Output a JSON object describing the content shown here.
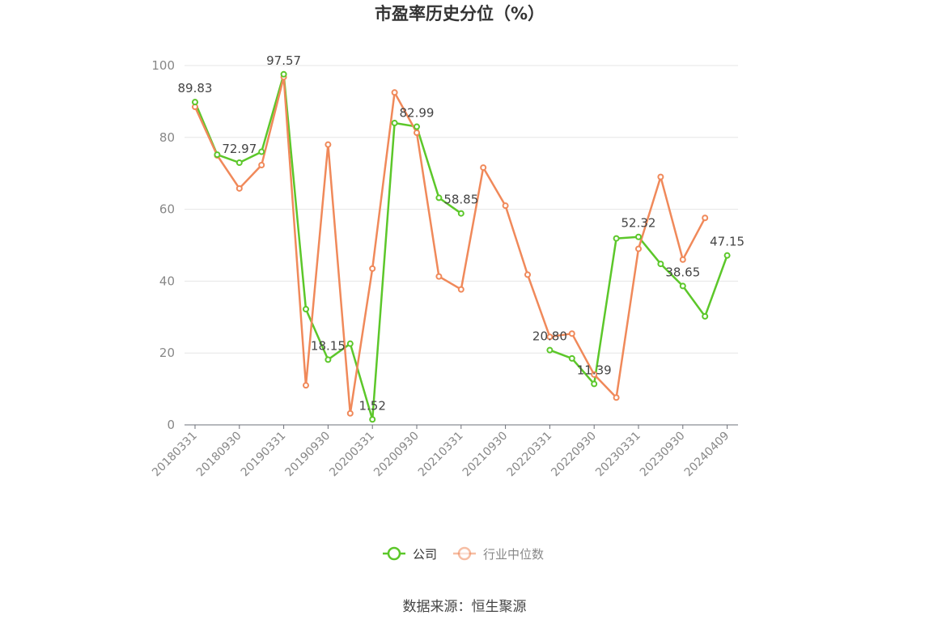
{
  "chart_data": {
    "type": "line",
    "title": "市盈率历史分位（%）",
    "source": "数据来源：恒生聚源",
    "ylim": [
      0,
      100
    ],
    "yticks": [
      0,
      20,
      40,
      60,
      80,
      100
    ],
    "grid": true,
    "legend_position": "bottom",
    "x_labels": [
      "20180331",
      "20180930",
      "20190331",
      "20190930",
      "20200331",
      "20200930",
      "20210331",
      "20210930",
      "20220331",
      "20220930",
      "20230331",
      "20230930",
      "20240409"
    ],
    "x": [
      "20180331",
      "20180630",
      "20180930",
      "20181231",
      "20190331",
      "20190630",
      "20190930",
      "20191231",
      "20200331",
      "20200630",
      "20200930",
      "20201231",
      "20210331",
      "20210630",
      "20210930",
      "20211231",
      "20220331",
      "20220630",
      "20220930",
      "20221231",
      "20230331",
      "20230630",
      "20230930",
      "20231231",
      "20240409"
    ],
    "series": [
      {
        "name": "公司",
        "color": "#5cc72a",
        "values": [
          89.83,
          75.2,
          72.97,
          76.0,
          97.57,
          32.2,
          18.15,
          22.6,
          1.52,
          84.0,
          82.99,
          63.2,
          58.85,
          null,
          null,
          null,
          20.8,
          18.5,
          11.39,
          51.9,
          52.32,
          44.8,
          38.65,
          30.2,
          47.15
        ]
      },
      {
        "name": "行业中位数",
        "color": "#f0895a",
        "values": [
          88.5,
          75.0,
          65.8,
          72.3,
          96.8,
          11.0,
          78.0,
          3.2,
          43.5,
          92.5,
          81.3,
          41.3,
          37.7,
          71.6,
          61.0,
          41.8,
          24.5,
          25.4,
          14.0,
          7.6,
          49.0,
          69.0,
          46.0,
          57.6,
          null
        ]
      }
    ],
    "data_labels": [
      {
        "series": 0,
        "index": 0,
        "text": "89.83"
      },
      {
        "series": 0,
        "index": 2,
        "text": "72.97"
      },
      {
        "series": 0,
        "index": 4,
        "text": "97.57"
      },
      {
        "series": 0,
        "index": 6,
        "text": "18.15"
      },
      {
        "series": 0,
        "index": 8,
        "text": "1.52"
      },
      {
        "series": 0,
        "index": 10,
        "text": "82.99"
      },
      {
        "series": 0,
        "index": 12,
        "text": "58.85"
      },
      {
        "series": 0,
        "index": 16,
        "text": "20.80"
      },
      {
        "series": 0,
        "index": 18,
        "text": "11.39"
      },
      {
        "series": 0,
        "index": 20,
        "text": "52.32"
      },
      {
        "series": 0,
        "index": 22,
        "text": "38.65"
      },
      {
        "series": 0,
        "index": 24,
        "text": "47.15"
      }
    ]
  }
}
